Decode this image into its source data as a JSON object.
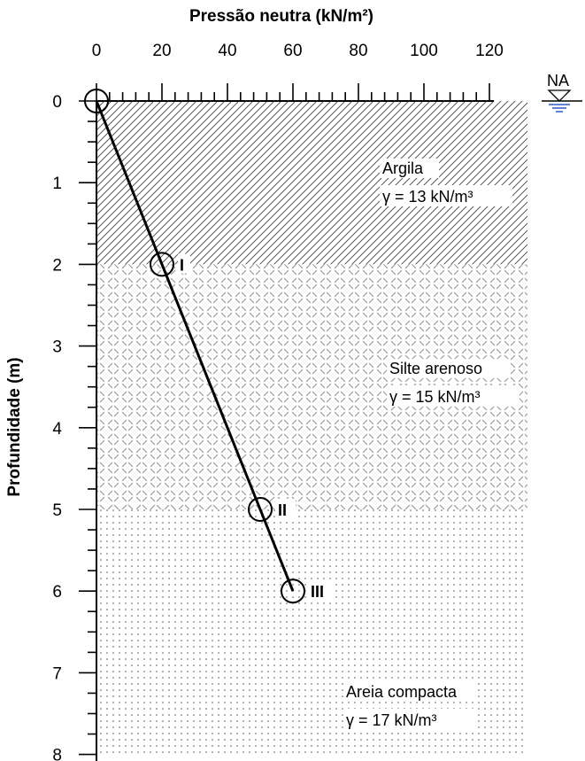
{
  "chart_data": {
    "type": "line",
    "xlabel": "Pressão neutra (kN/m²)",
    "ylabel": "Profundidade (m)",
    "xlim": [
      0,
      133
    ],
    "ylim": [
      0,
      8
    ],
    "x_axis_position": "top",
    "y_inverted": true,
    "x_ticks": [
      0,
      20,
      40,
      60,
      80,
      100,
      120
    ],
    "y_ticks": [
      0,
      1,
      2,
      3,
      4,
      5,
      6,
      7,
      8
    ],
    "series": [
      {
        "x": [
          0,
          20,
          50,
          60
        ],
        "y": [
          0,
          2,
          5,
          6
        ],
        "color": "#000000"
      }
    ],
    "points": [
      {
        "x": 0,
        "y": 0,
        "label": ""
      },
      {
        "x": 20,
        "y": 2,
        "label": "I"
      },
      {
        "x": 50,
        "y": 5,
        "label": "II"
      },
      {
        "x": 60,
        "y": 6,
        "label": "III"
      }
    ],
    "layers": [
      {
        "name": "Argila",
        "gamma": "γ = 13 kN/m³",
        "top": 0,
        "bottom": 2,
        "pattern": "diagonal-hatch"
      },
      {
        "name": "Silte arenoso",
        "gamma": "γ = 15 kN/m³",
        "top": 2,
        "bottom": 5,
        "pattern": "diamond-plate"
      },
      {
        "name": "Areia compacta",
        "gamma": "γ = 17 kN/m³",
        "top": 5,
        "bottom": 8,
        "pattern": "dots"
      }
    ],
    "water_table": {
      "label": "NA",
      "depth": 0
    }
  }
}
